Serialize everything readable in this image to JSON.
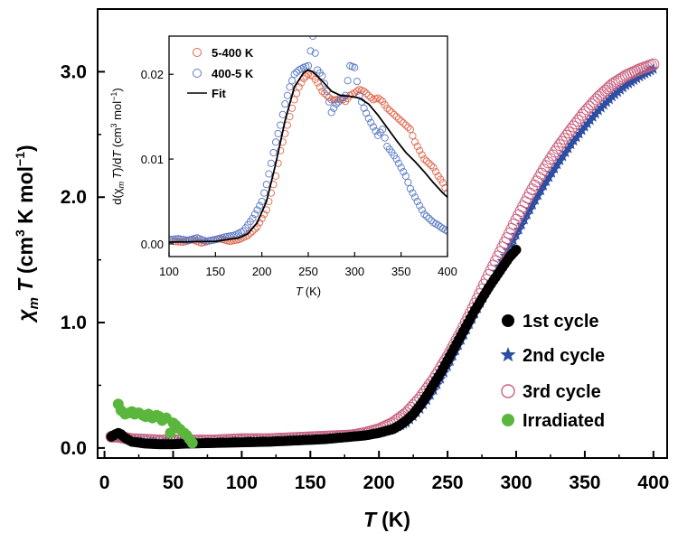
{
  "chart_data": [
    {
      "type": "scatter",
      "xlabel": "T (K)",
      "xlabel_var": "T",
      "xlabel_unit": "(K)",
      "ylabel_var_chi": "χ",
      "ylabel_sub": "m",
      "ylabel_var_T": "T",
      "ylabel_unit_pre": "(cm",
      "ylabel_unit_sup3": "3",
      "ylabel_unit_mid": " K mol",
      "ylabel_unit_sup": "−1",
      "ylabel_unit_post": ")",
      "xlim": [
        -5,
        410
      ],
      "ylim": [
        -0.08,
        3.5
      ],
      "xticks": [
        "0",
        "50",
        "100",
        "150",
        "200",
        "250",
        "300",
        "350",
        "400"
      ],
      "yticks": [
        "0.0",
        "1.0",
        "2.0",
        "3.0"
      ],
      "legend_position": "bottom-right",
      "series": [
        {
          "name": "1st cycle",
          "marker": "filled-circle",
          "color": "#000000",
          "x": [
            5,
            8,
            10,
            12,
            15,
            20,
            30,
            40,
            50,
            60,
            80,
            100,
            120,
            140,
            160,
            180,
            190,
            200,
            210,
            215,
            220,
            225,
            230,
            235,
            240,
            245,
            250,
            255,
            260,
            265,
            270,
            275,
            280,
            285,
            290,
            295,
            300
          ],
          "y": [
            0.09,
            0.11,
            0.12,
            0.11,
            0.08,
            0.05,
            0.035,
            0.03,
            0.03,
            0.035,
            0.04,
            0.045,
            0.05,
            0.06,
            0.07,
            0.09,
            0.1,
            0.12,
            0.15,
            0.18,
            0.22,
            0.27,
            0.34,
            0.42,
            0.51,
            0.6,
            0.7,
            0.8,
            0.9,
            1.0,
            1.1,
            1.19,
            1.28,
            1.36,
            1.44,
            1.52,
            1.58
          ]
        },
        {
          "name": "2nd cycle",
          "marker": "star",
          "color": "#2e4ea3",
          "x": [
            5,
            10,
            20,
            40,
            60,
            80,
            100,
            120,
            140,
            160,
            180,
            200,
            210,
            220,
            225,
            230,
            235,
            240,
            245,
            250,
            260,
            270,
            280,
            290,
            300,
            310,
            320,
            330,
            340,
            350,
            360,
            370,
            380,
            390,
            400
          ],
          "y": [
            0.09,
            0.08,
            0.06,
            0.05,
            0.05,
            0.05,
            0.06,
            0.06,
            0.07,
            0.08,
            0.09,
            0.12,
            0.15,
            0.2,
            0.25,
            0.31,
            0.38,
            0.46,
            0.55,
            0.65,
            0.86,
            1.07,
            1.28,
            1.49,
            1.7,
            1.9,
            2.09,
            2.26,
            2.42,
            2.56,
            2.69,
            2.8,
            2.89,
            2.96,
            3.02
          ]
        },
        {
          "name": "3rd cycle",
          "marker": "open-circle",
          "color": "#c8607d",
          "x": [
            5,
            10,
            20,
            40,
            60,
            80,
            100,
            120,
            140,
            160,
            180,
            190,
            200,
            210,
            220,
            230,
            240,
            250,
            260,
            270,
            280,
            290,
            300,
            310,
            320,
            330,
            340,
            350,
            360,
            370,
            380,
            390,
            400
          ],
          "y": [
            0.09,
            0.09,
            0.07,
            0.06,
            0.06,
            0.06,
            0.07,
            0.07,
            0.08,
            0.09,
            0.1,
            0.12,
            0.15,
            0.2,
            0.28,
            0.4,
            0.55,
            0.73,
            0.93,
            1.15,
            1.38,
            1.6,
            1.82,
            2.03,
            2.22,
            2.39,
            2.54,
            2.68,
            2.8,
            2.9,
            2.97,
            3.02,
            3.06
          ]
        },
        {
          "name": "Irradiated",
          "marker": "filled-circle",
          "color": "#5ab63c",
          "x": [
            10,
            12,
            15,
            18,
            20,
            22,
            25,
            28,
            30,
            32,
            35,
            38,
            40,
            42,
            45,
            48,
            50,
            52,
            55,
            58,
            60,
            62,
            64
          ],
          "y": [
            0.35,
            0.3,
            0.27,
            0.28,
            0.29,
            0.27,
            0.28,
            0.26,
            0.25,
            0.27,
            0.24,
            0.26,
            0.25,
            0.22,
            0.24,
            0.12,
            0.2,
            0.18,
            0.15,
            0.12,
            0.1,
            0.07,
            0.04
          ]
        }
      ]
    },
    {
      "type": "scatter",
      "xlabel_var": "T",
      "xlabel_unit": "(K)",
      "ylabel_d1": "d(χ",
      "ylabel_sub": "m",
      "ylabel_T1": "T",
      "ylabel_mid": ")/d",
      "ylabel_T2": "T",
      "ylabel_unit_pre": " (cm",
      "ylabel_unit_sup3": "3",
      "ylabel_unit_mid": " mol",
      "ylabel_unit_sup": "−1",
      "ylabel_unit_post": ")",
      "xlim": [
        100,
        400
      ],
      "ylim": [
        -0.0015,
        0.0245
      ],
      "xticks": [
        "100",
        "150",
        "200",
        "250",
        "300",
        "350",
        "400"
      ],
      "yticks": [
        "0.00",
        "0.01",
        "0.02"
      ],
      "legend_position": "top-left",
      "series": [
        {
          "name": "5-400 K",
          "marker": "open-circle",
          "color": "#e0664a",
          "x": [
            105,
            115,
            125,
            135,
            145,
            155,
            165,
            175,
            185,
            195,
            200,
            205,
            210,
            215,
            220,
            225,
            230,
            235,
            240,
            245,
            250,
            255,
            260,
            265,
            270,
            275,
            280,
            285,
            290,
            295,
            300,
            305,
            310,
            315,
            320,
            325,
            330,
            335,
            340,
            345,
            350,
            355,
            360,
            365,
            370,
            375,
            380,
            385,
            390,
            395,
            400
          ],
          "y": [
            0.0003,
            0.0002,
            0.0005,
            0.0001,
            0.0004,
            0.0006,
            0.0003,
            0.0005,
            0.001,
            0.002,
            0.003,
            0.004,
            0.006,
            0.008,
            0.011,
            0.013,
            0.015,
            0.017,
            0.0185,
            0.0195,
            0.02,
            0.0198,
            0.019,
            0.018,
            0.0175,
            0.017,
            0.017,
            0.0172,
            0.0168,
            0.0175,
            0.0178,
            0.0182,
            0.018,
            0.0175,
            0.017,
            0.0172,
            0.0168,
            0.016,
            0.0155,
            0.015,
            0.0145,
            0.014,
            0.0135,
            0.012,
            0.011,
            0.01,
            0.0095,
            0.009,
            0.008,
            0.0072,
            0.006
          ]
        },
        {
          "name": "400-5 K",
          "marker": "open-circle",
          "color": "#5878c4",
          "x": [
            100,
            110,
            120,
            130,
            140,
            150,
            160,
            170,
            180,
            190,
            200,
            205,
            210,
            215,
            220,
            225,
            230,
            235,
            240,
            245,
            250,
            255,
            260,
            265,
            270,
            275,
            280,
            285,
            290,
            295,
            300,
            305,
            310,
            315,
            320,
            325,
            330,
            335,
            340,
            345,
            350,
            355,
            360,
            365,
            370,
            375,
            380,
            385,
            390,
            395,
            400
          ],
          "y": [
            0.0005,
            0.0006,
            0.0004,
            0.0007,
            0.0003,
            0.0005,
            0.0008,
            0.001,
            0.0015,
            0.003,
            0.005,
            0.007,
            0.0095,
            0.012,
            0.014,
            0.0165,
            0.0185,
            0.02,
            0.0205,
            0.0208,
            0.021,
            0.0245,
            0.0205,
            0.0198,
            0.018,
            0.0155,
            0.0165,
            0.017,
            0.0175,
            0.021,
            0.0208,
            0.0175,
            0.016,
            0.0148,
            0.0138,
            0.0128,
            0.0135,
            0.0115,
            0.0108,
            0.01,
            0.009,
            0.008,
            0.0065,
            0.0055,
            0.0045,
            0.0035,
            0.003,
            0.0025,
            0.0022,
            0.0018,
            0.0015
          ]
        },
        {
          "name": "Fit",
          "marker": "line",
          "color": "#000000",
          "x": [
            100,
            150,
            175,
            185,
            195,
            205,
            215,
            225,
            235,
            245,
            250,
            255,
            265,
            275,
            285,
            295,
            305,
            315,
            325,
            335,
            345,
            355,
            365,
            375,
            385,
            395,
            400
          ],
          "y": [
            0.0002,
            0.0003,
            0.0007,
            0.0012,
            0.0025,
            0.005,
            0.0095,
            0.0145,
            0.0185,
            0.0202,
            0.0205,
            0.0203,
            0.0192,
            0.018,
            0.0175,
            0.0174,
            0.0172,
            0.0165,
            0.0152,
            0.0137,
            0.0122,
            0.0108,
            0.0097,
            0.0085,
            0.0072,
            0.006,
            0.0055
          ]
        }
      ]
    }
  ]
}
